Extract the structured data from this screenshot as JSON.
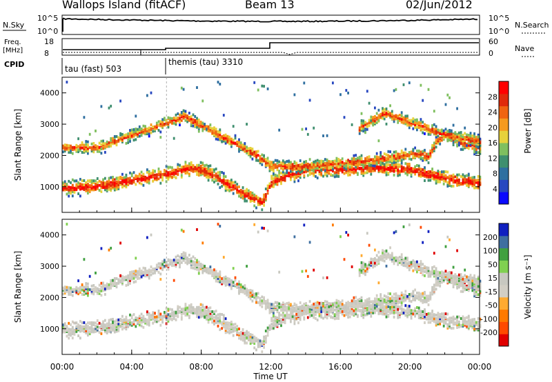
{
  "header": {
    "station_title": "Wallops Island (fitACF)",
    "beam_label": "Beam 13",
    "date_label": "02/Jun/2012"
  },
  "status_panels": {
    "nsky_label": "N.Sky",
    "nsky_ticks": [
      "10^5",
      "10^0"
    ],
    "nsearch_label": "N.Search",
    "nsearch_ticks": [
      "10^5",
      "10^0"
    ],
    "freq_label_line1": "Freq.",
    "freq_label_line2": "[MHz]",
    "freq_ticks": [
      "18",
      "8"
    ],
    "nave_label": "Nave",
    "nave_ticks": [
      "60",
      "0"
    ],
    "cpid_label": "CPID",
    "cpid_segments": [
      {
        "label": "tau (fast) 503",
        "start_hour": 0,
        "end_hour": 6
      },
      {
        "label": "themis (tau) 3310",
        "start_hour": 6,
        "end_hour": 24
      }
    ]
  },
  "chart_data": [
    {
      "type": "heatmap",
      "panel": "power",
      "ylabel": "Slant Range [km]",
      "ylim": [
        180,
        4500
      ],
      "yticks": [
        1000,
        2000,
        3000,
        4000
      ],
      "xlabel": "",
      "xlim_hours": [
        0,
        24
      ],
      "colorbar": {
        "label": "Power [dB]",
        "ticks": [
          "4",
          "8",
          "12",
          "16",
          "20",
          "24",
          "28"
        ],
        "range": [
          0,
          30
        ],
        "colors": [
          "#0a0aff",
          "#2848c0",
          "#2f6fa0",
          "#3f8f6f",
          "#7fbf5f",
          "#e6d23c",
          "#f59a1e",
          "#f06410",
          "#e02a0a",
          "#ff0000"
        ]
      },
      "echo_bands": [
        {
          "name": "lower",
          "points": [
            [
              0,
              1000
            ],
            [
              2,
              1050
            ],
            [
              4,
              1250
            ],
            [
              6,
              1450
            ],
            [
              7,
              1600
            ],
            [
              8,
              1600
            ],
            [
              9,
              1300
            ],
            [
              10,
              950
            ],
            [
              11,
              650
            ],
            [
              11.5,
              550
            ],
            [
              12,
              1200
            ],
            [
              14,
              1600
            ],
            [
              16,
              1600
            ],
            [
              18,
              1650
            ],
            [
              20,
              1600
            ],
            [
              21,
              1450
            ],
            [
              22.5,
              1250
            ],
            [
              24,
              1150
            ]
          ]
        },
        {
          "name": "upper",
          "points": [
            [
              0,
              2300
            ],
            [
              2,
              2300
            ],
            [
              4,
              2700
            ],
            [
              6,
              3100
            ],
            [
              7,
              3300
            ],
            [
              8,
              3000
            ],
            [
              9,
              2700
            ],
            [
              10,
              2400
            ],
            [
              11,
              2100
            ],
            [
              12,
              1700
            ],
            [
              14,
              1700
            ],
            [
              16,
              1800
            ],
            [
              18,
              1900
            ],
            [
              19,
              2000
            ],
            [
              20.5,
              2100
            ],
            [
              21,
              2000
            ],
            [
              21.5,
              2500
            ],
            [
              22,
              2700
            ],
            [
              23,
              2400
            ],
            [
              24,
              2300
            ]
          ]
        },
        {
          "name": "high",
          "points": [
            [
              17,
              2900
            ],
            [
              18.5,
              3400
            ],
            [
              19.5,
              3200
            ],
            [
              21,
              2900
            ],
            [
              22,
              2700
            ],
            [
              23,
              2600
            ],
            [
              24,
              2500
            ]
          ]
        }
      ]
    },
    {
      "type": "heatmap",
      "panel": "velocity",
      "ylabel": "Slant Range [km]",
      "ylim": [
        180,
        4500
      ],
      "yticks": [
        1000,
        2000,
        3000,
        4000
      ],
      "xlabel": "Time UT",
      "xticks": [
        "00:00",
        "04:00",
        "08:00",
        "12:00",
        "16:00",
        "20:00",
        "00:00"
      ],
      "colorbar": {
        "label": "Velocity [m s⁻¹]",
        "ticks": [
          "200",
          "100",
          "50",
          "15",
          "-15",
          "-50",
          "-100",
          "-200"
        ],
        "range": [
          -250,
          250
        ],
        "colors": [
          "#e00000",
          "#ff4a00",
          "#ff7a00",
          "#ffaa30",
          "#d2cec4",
          "#c8c8c0",
          "#80d050",
          "#40a040",
          "#3f6fa0",
          "#1020c0"
        ]
      }
    }
  ]
}
